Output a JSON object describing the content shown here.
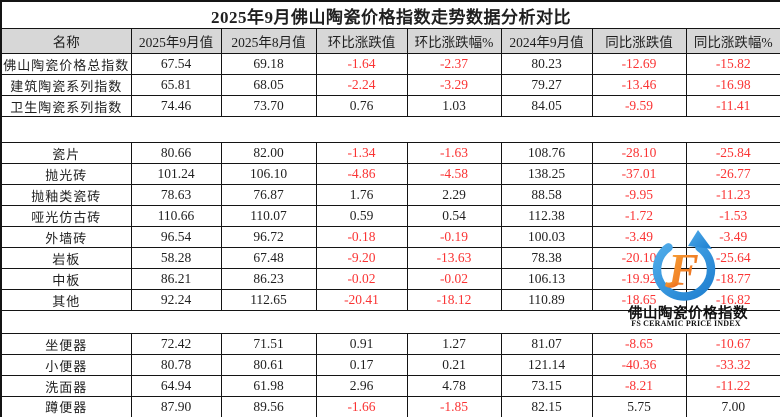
{
  "chart_data": {
    "type": "table",
    "title": "2025年9月佛山陶瓷价格指数走势数据分析对比",
    "columns": [
      "名称",
      "2025年9月值",
      "2025年8月值",
      "环比涨跌值",
      "环比涨跌幅%",
      "2024年9月值",
      "同比涨跌值",
      "同比涨跌幅%"
    ],
    "sections": [
      [
        [
          "佛山陶瓷价格总指数",
          "67.54",
          "69.18",
          "-1.64",
          "-2.37",
          "80.23",
          "-12.69",
          "-15.82"
        ],
        [
          "建筑陶瓷系列指数",
          "65.81",
          "68.05",
          "-2.24",
          "-3.29",
          "79.27",
          "-13.46",
          "-16.98"
        ],
        [
          "卫生陶瓷系列指数",
          "74.46",
          "73.70",
          "0.76",
          "1.03",
          "84.05",
          "-9.59",
          "-11.41"
        ]
      ],
      [
        [
          "瓷片",
          "80.66",
          "82.00",
          "-1.34",
          "-1.63",
          "108.76",
          "-28.10",
          "-25.84"
        ],
        [
          "抛光砖",
          "101.24",
          "106.10",
          "-4.86",
          "-4.58",
          "138.25",
          "-37.01",
          "-26.77"
        ],
        [
          "抛釉类瓷砖",
          "78.63",
          "76.87",
          "1.76",
          "2.29",
          "88.58",
          "-9.95",
          "-11.23"
        ],
        [
          "哑光仿古砖",
          "110.66",
          "110.07",
          "0.59",
          "0.54",
          "112.38",
          "-1.72",
          "-1.53"
        ],
        [
          "外墙砖",
          "96.54",
          "96.72",
          "-0.18",
          "-0.19",
          "100.03",
          "-3.49",
          "-3.49"
        ],
        [
          "岩板",
          "58.28",
          "67.48",
          "-9.20",
          "-13.63",
          "78.38",
          "-20.10",
          "-25.64"
        ],
        [
          "中板",
          "86.21",
          "86.23",
          "-0.02",
          "-0.02",
          "106.13",
          "-19.92",
          "-18.77"
        ],
        [
          "其他",
          "92.24",
          "112.65",
          "-20.41",
          "-18.12",
          "110.89",
          "-18.65",
          "-16.82"
        ]
      ],
      [
        [
          "坐便器",
          "72.42",
          "71.51",
          "0.91",
          "1.27",
          "81.07",
          "-8.65",
          "-10.67"
        ],
        [
          "小便器",
          "80.78",
          "80.61",
          "0.17",
          "0.21",
          "121.14",
          "-40.36",
          "-33.32"
        ],
        [
          "洗面器",
          "64.94",
          "61.98",
          "2.96",
          "4.78",
          "73.15",
          "-8.21",
          "-11.22"
        ],
        [
          "蹲便器",
          "87.90",
          "89.56",
          "-1.66",
          "-1.85",
          "82.15",
          "5.75",
          "7.00"
        ]
      ]
    ]
  },
  "watermark": {
    "logo_letter": "F",
    "line1": "佛山陶瓷价格指数",
    "line2": "FS CERAMIC PRICE INDEX"
  },
  "colors": {
    "negative": "#fa3434",
    "text": "#1f1f1f",
    "grid": "#141414",
    "header_bg": "#d7d7d7",
    "logo_blue": "#1e7fd0",
    "logo_blue_light": "#4fabe9",
    "logo_orange": "#ec6118",
    "logo_orange_light": "#f8a93a"
  }
}
